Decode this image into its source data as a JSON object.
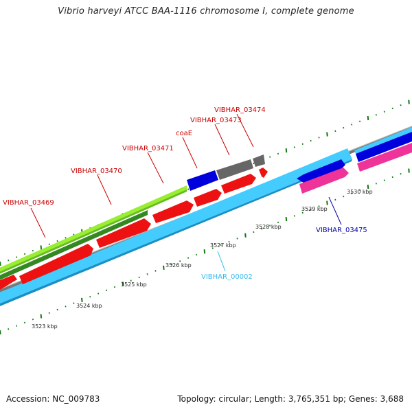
{
  "header": {
    "title": "Vibrio harveyi ATCC BAA-1116 chromosome I, complete genome"
  },
  "footer": {
    "accession": "Accession: NC_009783",
    "summary": "Topology: circular; Length: 3,765,351 bp; Genes: 3,688"
  },
  "colors": {
    "red": "#ee1111",
    "blue": "#0000dd",
    "grey": "#666666",
    "pink": "#ee3399",
    "lightgreen": "#99ee33",
    "darkgreen": "#338822",
    "cyan": "#44ccff",
    "tick": "#117711"
  },
  "position_labels": [
    "3523 kbp",
    "3524 kbp",
    "3525 kbp",
    "3526 kbp",
    "3527 kbp",
    "3528 kbp",
    "3529 kbp",
    "3530 kbp"
  ],
  "gene_labels": [
    {
      "text": "VIBHAR_03469",
      "color": "#cc0000"
    },
    {
      "text": "VIBHAR_03470",
      "color": "#cc0000"
    },
    {
      "text": "VIBHAR_03471",
      "color": "#cc0000"
    },
    {
      "text": "coaE",
      "color": "#cc0000"
    },
    {
      "text": "VIBHAR_03473",
      "color": "#cc0000"
    },
    {
      "text": "VIBHAR_03474",
      "color": "#cc0000"
    },
    {
      "text": "VIBHAR_03475",
      "color": "#0000aa"
    },
    {
      "text": "VIBHAR_00002",
      "color": "#33bbee"
    }
  ]
}
